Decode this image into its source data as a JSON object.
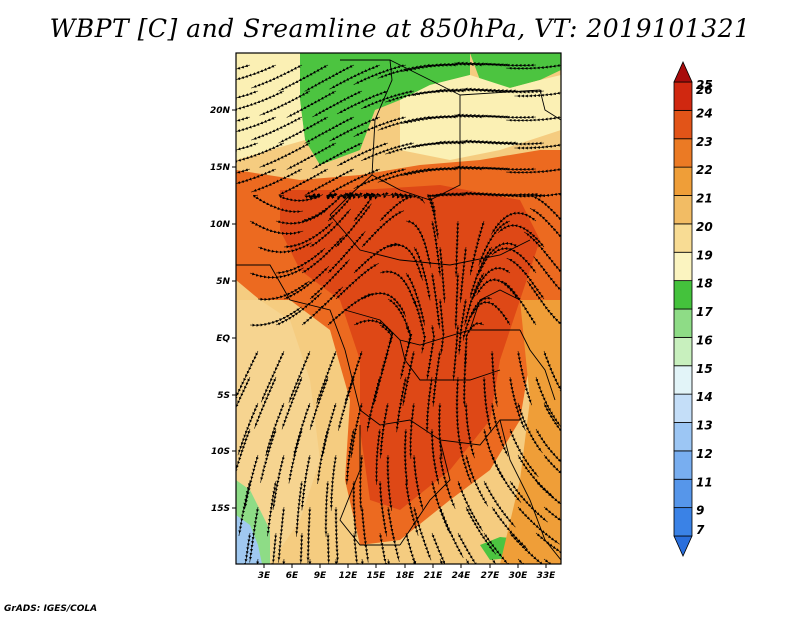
{
  "title": "WBPT [C] and Sreamline at 850hPa, VT: 2019101321",
  "footer": "GrADS: IGES/COLA",
  "map": {
    "lat_ticks": [
      "20N",
      "15N",
      "10N",
      "5N",
      "EQ",
      "5S",
      "10S",
      "15S"
    ],
    "lon_ticks": [
      "3E",
      "6E",
      "9E",
      "12E",
      "15E",
      "18E",
      "21E",
      "24E",
      "27E",
      "30E",
      "33E"
    ]
  },
  "colorbar": {
    "labels": [
      "7",
      "9",
      "11",
      "12",
      "13",
      "14",
      "15",
      "16",
      "17",
      "18",
      "19",
      "20",
      "21",
      "22",
      "23",
      "24",
      "25",
      "26"
    ],
    "colors": [
      "#2a6fdc",
      "#3a82e6",
      "#5696ea",
      "#78aef0",
      "#9cc6f4",
      "#c4def8",
      "#e2f4f8",
      "#c8f0be",
      "#8edc86",
      "#44c23c",
      "#fbf4c0",
      "#f8dc94",
      "#f2bc64",
      "#ef9e38",
      "#eb7a24",
      "#e25418",
      "#d02810",
      "#a80c0c"
    ]
  }
}
